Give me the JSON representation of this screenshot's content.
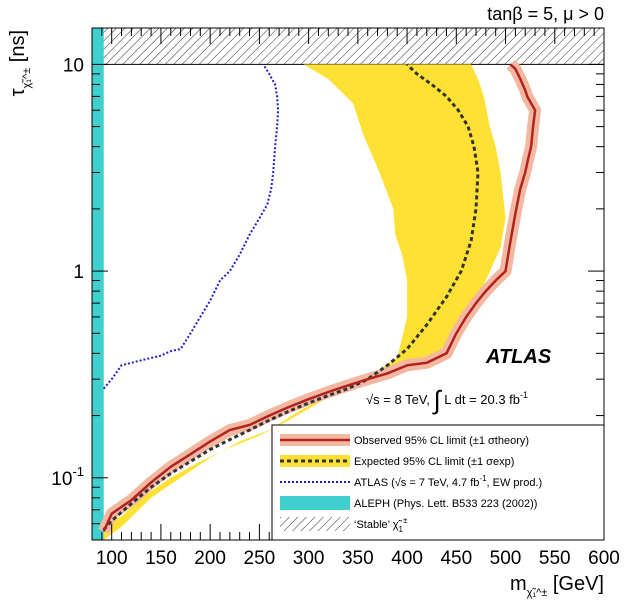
{
  "chart_data": {
    "type": "line",
    "top_label": "tanβ = 5, μ > 0",
    "xlabel": "m",
    "xlabel_subscript": "χ̃₁^±",
    "xlabel_unit": "[GeV]",
    "ylabel": "τ",
    "ylabel_subscript": "χ̃₁^±",
    "ylabel_unit": "[ns]",
    "xlim": [
      80,
      600
    ],
    "ylim": [
      0.05,
      15
    ],
    "y_scale": "log",
    "x_ticks": [
      "100",
      "150",
      "200",
      "250",
      "300",
      "350",
      "400",
      "450",
      "500",
      "550",
      "600"
    ],
    "y_ticks": [
      {
        "value": 0.1,
        "base": "10",
        "exp": "-1"
      },
      {
        "value": 1,
        "base": "1",
        "exp": ""
      },
      {
        "value": 10,
        "base": "10",
        "exp": ""
      }
    ],
    "experiment_label": "ATLAS",
    "lumi_label": {
      "sqrt": "√s",
      "energy": " = 8 TeV, ",
      "integral": "∫",
      "rest": " L dt = 20.3 fb",
      "sup": "-1"
    },
    "stable_region_min_tau": 10,
    "aleph_region_max_mass": 91.9,
    "series": [
      {
        "name": "Observed 95% CL limit (±1 σtheory)",
        "style": "observed",
        "color": "#b22222",
        "band_color": "#f2b8a0",
        "points": [
          [
            91.9,
            0.055
          ],
          [
            100,
            0.067
          ],
          [
            120,
            0.078
          ],
          [
            140,
            0.095
          ],
          [
            160,
            0.113
          ],
          [
            180,
            0.13
          ],
          [
            200,
            0.15
          ],
          [
            220,
            0.17
          ],
          [
            240,
            0.18
          ],
          [
            260,
            0.2
          ],
          [
            280,
            0.22
          ],
          [
            300,
            0.24
          ],
          [
            320,
            0.26
          ],
          [
            340,
            0.28
          ],
          [
            360,
            0.3
          ],
          [
            380,
            0.32
          ],
          [
            400,
            0.35
          ],
          [
            420,
            0.36
          ],
          [
            440,
            0.4
          ],
          [
            450,
            0.5
          ],
          [
            460,
            0.6
          ],
          [
            470,
            0.7
          ],
          [
            480,
            0.8
          ],
          [
            490,
            0.9
          ],
          [
            500,
            1.0
          ],
          [
            505,
            1.4
          ],
          [
            510,
            1.9
          ],
          [
            515,
            2.5
          ],
          [
            520,
            3.0
          ],
          [
            523,
            3.5
          ],
          [
            526,
            4.0
          ],
          [
            528,
            5.0
          ],
          [
            530,
            6.0
          ],
          [
            522,
            7.0
          ],
          [
            520,
            7.5
          ],
          [
            515,
            8.5
          ],
          [
            510,
            9.5
          ],
          [
            505,
            10
          ]
        ],
        "band_halfwidth": 6
      },
      {
        "name": "Expected 95% CL limit (±1 σexp)",
        "style": "expected",
        "color": "#333333",
        "band_color": "#ffe135",
        "points": [
          [
            91.9,
            0.056
          ],
          [
            100,
            0.062
          ],
          [
            120,
            0.075
          ],
          [
            140,
            0.09
          ],
          [
            160,
            0.105
          ],
          [
            180,
            0.12
          ],
          [
            200,
            0.137
          ],
          [
            220,
            0.153
          ],
          [
            240,
            0.17
          ],
          [
            260,
            0.19
          ],
          [
            280,
            0.21
          ],
          [
            300,
            0.23
          ],
          [
            320,
            0.25
          ],
          [
            340,
            0.27
          ],
          [
            360,
            0.3
          ],
          [
            380,
            0.35
          ],
          [
            400,
            0.42
          ],
          [
            420,
            0.55
          ],
          [
            440,
            0.75
          ],
          [
            455,
            1.0
          ],
          [
            465,
            1.4
          ],
          [
            470,
            2.0
          ],
          [
            472,
            3.0
          ],
          [
            468,
            4.0
          ],
          [
            462,
            5.0
          ],
          [
            452,
            6.0
          ],
          [
            440,
            7.0
          ],
          [
            425,
            8.0
          ],
          [
            410,
            9.0
          ],
          [
            400,
            10
          ]
        ],
        "band_lower": [
          [
            91.9,
            0.06
          ],
          [
            110,
            0.065
          ],
          [
            130,
            0.08
          ],
          [
            160,
            0.1
          ],
          [
            190,
            0.12
          ],
          [
            220,
            0.14
          ],
          [
            250,
            0.16
          ],
          [
            280,
            0.19
          ],
          [
            310,
            0.23
          ],
          [
            340,
            0.28
          ],
          [
            370,
            0.33
          ],
          [
            390,
            0.38
          ],
          [
            400,
            0.6
          ],
          [
            400,
            0.9
          ],
          [
            395,
            1.2
          ],
          [
            388,
            1.5
          ],
          [
            386,
            2.0
          ],
          [
            372,
            3.0
          ],
          [
            356,
            4.5
          ],
          [
            345,
            6.5
          ],
          [
            320,
            8.5
          ],
          [
            295,
            10
          ]
        ],
        "band_upper": [
          [
            91.9,
            0.05
          ],
          [
            110,
            0.058
          ],
          [
            140,
            0.08
          ],
          [
            170,
            0.1
          ],
          [
            200,
            0.125
          ],
          [
            230,
            0.15
          ],
          [
            260,
            0.17
          ],
          [
            290,
            0.21
          ],
          [
            320,
            0.25
          ],
          [
            350,
            0.29
          ],
          [
            380,
            0.33
          ],
          [
            410,
            0.37
          ],
          [
            440,
            0.41
          ],
          [
            460,
            0.6
          ],
          [
            480,
            0.9
          ],
          [
            495,
            1.3
          ],
          [
            500,
            1.8
          ],
          [
            495,
            3.0
          ],
          [
            490,
            4.0
          ],
          [
            484,
            5.0
          ],
          [
            478,
            7.0
          ],
          [
            472,
            8.5
          ],
          [
            465,
            10
          ]
        ]
      },
      {
        "name": "ATLAS (√s = 7 TeV, 4.7 fb-1, EW prod.)",
        "legend_parts": {
          "pre": "ATLAS (",
          "sqrt": "√s",
          "mid": " = 7 TeV, 4.7 fb",
          "sup": "-1",
          "post": ", EW prod.)"
        },
        "style": "atlas7",
        "color": "#2020c8",
        "points": [
          [
            91.9,
            0.27
          ],
          [
            100,
            0.3
          ],
          [
            110,
            0.35
          ],
          [
            130,
            0.37
          ],
          [
            150,
            0.39
          ],
          [
            160,
            0.41
          ],
          [
            170,
            0.42
          ],
          [
            180,
            0.5
          ],
          [
            190,
            0.6
          ],
          [
            200,
            0.72
          ],
          [
            210,
            0.9
          ],
          [
            220,
            1.0
          ],
          [
            230,
            1.2
          ],
          [
            240,
            1.5
          ],
          [
            250,
            1.8
          ],
          [
            258,
            2.1
          ],
          [
            262,
            2.5
          ],
          [
            264,
            3.0
          ],
          [
            266,
            4.0
          ],
          [
            268,
            5.0
          ],
          [
            269,
            6.0
          ],
          [
            268,
            7.0
          ],
          [
            266,
            8.0
          ],
          [
            260,
            9.0
          ],
          [
            254,
            10
          ]
        ]
      },
      {
        "name": "ALEPH (Phys. Lett. B533 223 (2002))",
        "style": "aleph",
        "color": "#3fcfcf"
      },
      {
        "name": "'Stable' χ̃₁±",
        "legend_parts": {
          "pre": "‘Stable’ ",
          "symbol": "χ̃",
          "sub": "1",
          "sup": "±"
        },
        "style": "stable",
        "color": "#000000"
      }
    ]
  }
}
